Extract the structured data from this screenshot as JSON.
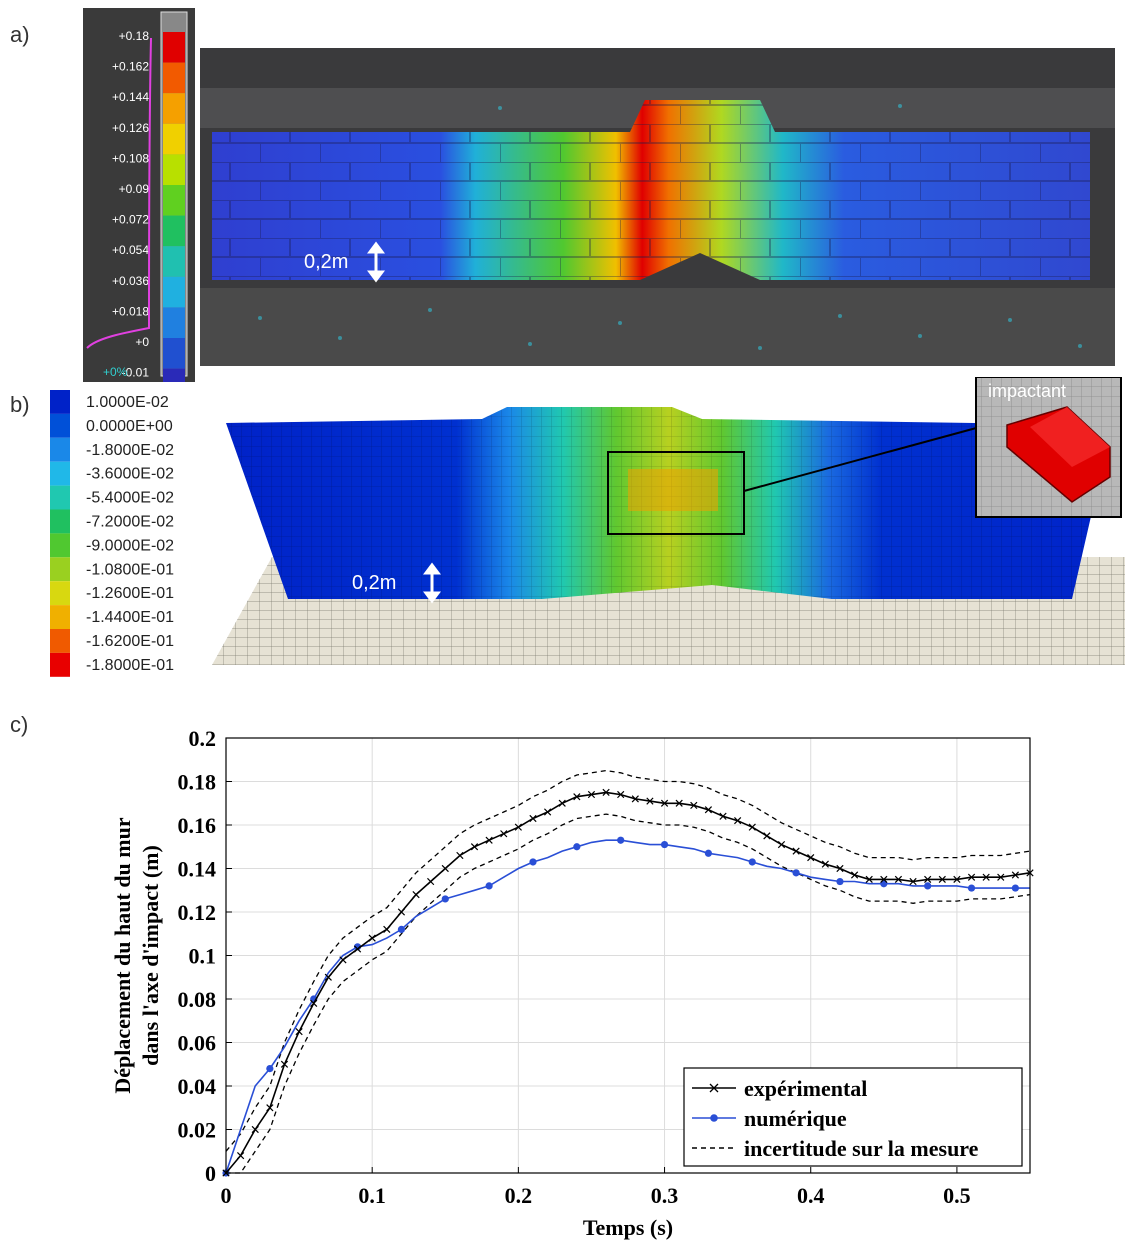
{
  "panels": {
    "a": {
      "label": "a)"
    },
    "b": {
      "label": "b)"
    },
    "c": {
      "label": "c)"
    }
  },
  "colorbar_a": {
    "ticks": [
      "+0.18",
      "+0.162",
      "+0.144",
      "+0.126",
      "+0.108",
      "+0.09",
      "+0.072",
      "+0.054",
      "+0.036",
      "+0.018",
      "+0",
      "-0.01"
    ],
    "percent": "+0%",
    "colors": [
      "#e00000",
      "#f25a00",
      "#f5a000",
      "#f0d000",
      "#b8e000",
      "#60d020",
      "#20c060",
      "#20c0b0",
      "#20b0e0",
      "#2080e0",
      "#2050d0",
      "#2a2ab8"
    ]
  },
  "panel_a": {
    "scale_label": "0,2m"
  },
  "colorbar_b": {
    "ticks": [
      "1.0000E-02",
      "0.0000E+00",
      "-1.8000E-02",
      "-3.6000E-02",
      "-5.4000E-02",
      "-7.2000E-02",
      "-9.0000E-02",
      "-1.0800E-01",
      "-1.2600E-01",
      "-1.4400E-01",
      "-1.6200E-01",
      "-1.8000E-01"
    ],
    "colors": [
      "#0022c8",
      "#0050d8",
      "#1a88e8",
      "#20b8e8",
      "#20c8b0",
      "#20c060",
      "#50c830",
      "#9ad020",
      "#d8d810",
      "#f0b000",
      "#f05a00",
      "#e80000"
    ]
  },
  "panel_b": {
    "scale_label": "0,2m",
    "inset_label": "impactant"
  },
  "chart_data": {
    "type": "line",
    "title": "",
    "xlabel": "Temps (s)",
    "ylabel_lines": [
      "Déplacement du haut du mur",
      "dans l'axe d'impact (m)"
    ],
    "xlim": [
      0,
      0.55
    ],
    "ylim": [
      0,
      0.2
    ],
    "xticks": [
      0,
      0.1,
      0.2,
      0.3,
      0.4,
      0.5
    ],
    "xtick_labels": [
      "0",
      "0.1",
      "0.2",
      "0.3",
      "0.4",
      "0.5"
    ],
    "yticks": [
      0,
      0.02,
      0.04,
      0.06,
      0.08,
      0.1,
      0.12,
      0.14,
      0.16,
      0.18,
      0.2
    ],
    "ytick_labels": [
      "0",
      "0.02",
      "0.04",
      "0.06",
      "0.08",
      "0.1",
      "0.12",
      "0.14",
      "0.16",
      "0.18",
      "0.2"
    ],
    "grid": true,
    "legend_position": "bottom-right",
    "series": [
      {
        "name": "expérimental",
        "color": "#000000",
        "marker": "x",
        "x": [
          0,
          0.01,
          0.02,
          0.03,
          0.04,
          0.05,
          0.06,
          0.07,
          0.08,
          0.09,
          0.1,
          0.11,
          0.12,
          0.13,
          0.14,
          0.15,
          0.16,
          0.17,
          0.18,
          0.19,
          0.2,
          0.21,
          0.22,
          0.23,
          0.24,
          0.25,
          0.26,
          0.27,
          0.28,
          0.29,
          0.3,
          0.31,
          0.32,
          0.33,
          0.34,
          0.35,
          0.36,
          0.37,
          0.38,
          0.39,
          0.4,
          0.41,
          0.42,
          0.43,
          0.44,
          0.45,
          0.46,
          0.47,
          0.48,
          0.49,
          0.5,
          0.51,
          0.52,
          0.53,
          0.54,
          0.55
        ],
        "y": [
          0,
          0.008,
          0.02,
          0.03,
          0.05,
          0.065,
          0.078,
          0.09,
          0.098,
          0.103,
          0.108,
          0.112,
          0.12,
          0.128,
          0.134,
          0.14,
          0.146,
          0.15,
          0.153,
          0.156,
          0.159,
          0.163,
          0.166,
          0.17,
          0.173,
          0.174,
          0.175,
          0.174,
          0.172,
          0.171,
          0.17,
          0.17,
          0.169,
          0.167,
          0.164,
          0.162,
          0.159,
          0.155,
          0.151,
          0.148,
          0.145,
          0.142,
          0.14,
          0.137,
          0.135,
          0.135,
          0.135,
          0.134,
          0.135,
          0.135,
          0.135,
          0.136,
          0.136,
          0.136,
          0.137,
          0.138
        ]
      },
      {
        "name": "numérique",
        "color": "#2a4fd6",
        "marker": "*",
        "x": [
          0,
          0.01,
          0.02,
          0.03,
          0.04,
          0.05,
          0.06,
          0.07,
          0.08,
          0.09,
          0.1,
          0.11,
          0.12,
          0.13,
          0.14,
          0.15,
          0.16,
          0.17,
          0.18,
          0.19,
          0.2,
          0.21,
          0.22,
          0.23,
          0.24,
          0.25,
          0.26,
          0.27,
          0.28,
          0.29,
          0.3,
          0.31,
          0.32,
          0.33,
          0.34,
          0.35,
          0.36,
          0.37,
          0.38,
          0.39,
          0.4,
          0.41,
          0.42,
          0.43,
          0.44,
          0.45,
          0.46,
          0.47,
          0.48,
          0.49,
          0.5,
          0.51,
          0.52,
          0.53,
          0.54,
          0.55
        ],
        "y": [
          0,
          0.02,
          0.04,
          0.048,
          0.058,
          0.07,
          0.08,
          0.092,
          0.1,
          0.104,
          0.105,
          0.108,
          0.112,
          0.118,
          0.122,
          0.126,
          0.128,
          0.13,
          0.132,
          0.136,
          0.14,
          0.143,
          0.145,
          0.148,
          0.15,
          0.152,
          0.153,
          0.153,
          0.152,
          0.151,
          0.151,
          0.15,
          0.149,
          0.147,
          0.146,
          0.145,
          0.143,
          0.141,
          0.14,
          0.138,
          0.136,
          0.135,
          0.134,
          0.134,
          0.133,
          0.133,
          0.133,
          0.132,
          0.132,
          0.132,
          0.132,
          0.131,
          0.131,
          0.131,
          0.131,
          0.131
        ]
      },
      {
        "name": "incertitude sur la mesure",
        "color": "#000000",
        "style": "dashed",
        "x": [
          0,
          0.01,
          0.02,
          0.03,
          0.04,
          0.05,
          0.06,
          0.07,
          0.08,
          0.09,
          0.1,
          0.11,
          0.12,
          0.13,
          0.14,
          0.15,
          0.16,
          0.17,
          0.18,
          0.19,
          0.2,
          0.21,
          0.22,
          0.23,
          0.24,
          0.25,
          0.26,
          0.27,
          0.28,
          0.29,
          0.3,
          0.31,
          0.32,
          0.33,
          0.34,
          0.35,
          0.36,
          0.37,
          0.38,
          0.39,
          0.4,
          0.41,
          0.42,
          0.43,
          0.44,
          0.45,
          0.46,
          0.47,
          0.48,
          0.49,
          0.5,
          0.51,
          0.52,
          0.53,
          0.54,
          0.55
        ],
        "y_upper": [
          0.01,
          0.018,
          0.03,
          0.04,
          0.06,
          0.075,
          0.088,
          0.1,
          0.108,
          0.113,
          0.118,
          0.122,
          0.13,
          0.138,
          0.144,
          0.15,
          0.156,
          0.16,
          0.163,
          0.166,
          0.169,
          0.173,
          0.176,
          0.18,
          0.183,
          0.184,
          0.185,
          0.184,
          0.182,
          0.181,
          0.18,
          0.18,
          0.179,
          0.177,
          0.174,
          0.172,
          0.169,
          0.165,
          0.161,
          0.158,
          0.155,
          0.152,
          0.15,
          0.147,
          0.145,
          0.145,
          0.145,
          0.144,
          0.145,
          0.145,
          0.145,
          0.146,
          0.146,
          0.146,
          0.147,
          0.148
        ],
        "y_lower": [
          0,
          0,
          0.01,
          0.02,
          0.04,
          0.055,
          0.068,
          0.08,
          0.088,
          0.093,
          0.098,
          0.102,
          0.11,
          0.118,
          0.124,
          0.13,
          0.136,
          0.14,
          0.143,
          0.146,
          0.149,
          0.153,
          0.156,
          0.16,
          0.163,
          0.164,
          0.165,
          0.164,
          0.162,
          0.161,
          0.16,
          0.16,
          0.159,
          0.157,
          0.154,
          0.152,
          0.149,
          0.145,
          0.141,
          0.138,
          0.135,
          0.132,
          0.13,
          0.127,
          0.125,
          0.125,
          0.125,
          0.124,
          0.125,
          0.125,
          0.125,
          0.126,
          0.126,
          0.126,
          0.127,
          0.128
        ]
      }
    ]
  }
}
